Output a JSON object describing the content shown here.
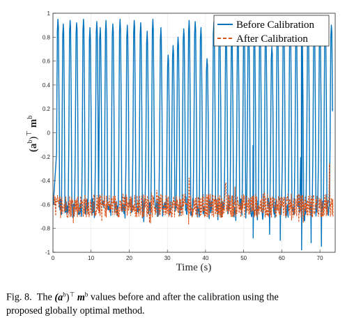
{
  "chart_data": {
    "type": "line",
    "xlabel": "Time (s)",
    "ylabel_parts": {
      "base": "(a",
      "sup1": "b",
      "close": ")",
      "sup2": "⊤",
      "m": " m",
      "sup3": "b"
    },
    "xlim": [
      0,
      74
    ],
    "ylim": [
      -1,
      1
    ],
    "x_ticks": [
      0,
      10,
      20,
      30,
      40,
      50,
      60,
      70
    ],
    "y_ticks": [
      -1,
      -0.8,
      -0.6,
      -0.4,
      -0.2,
      0,
      0.2,
      0.4,
      0.6,
      0.8,
      1
    ],
    "grid": true,
    "legend_position": "top-right",
    "series": [
      {
        "name": "Before Calibration",
        "color": "#0072BD",
        "style": "solid",
        "peak_times": [
          1.3,
          2.7,
          4.5,
          6.2,
          8.0,
          9.7,
          11.5,
          12.4,
          13.9,
          15.7,
          17.6,
          19.5,
          21.3,
          23.0,
          24.7,
          26.2,
          28.3,
          30.2,
          31.5,
          32.8,
          34.3,
          35.7,
          37.3,
          38.8,
          40.4,
          42.2,
          43.7,
          45.4,
          46.9,
          48.5,
          50.1,
          51.3,
          52.8,
          54.3,
          55.8,
          57.4,
          58.9,
          60.5,
          62.2,
          63.8,
          65.3,
          66.9,
          68.5,
          70.0,
          71.4,
          73.0
        ],
        "peak_values": [
          0.95,
          0.91,
          0.94,
          0.92,
          0.95,
          0.88,
          0.93,
          0.88,
          0.94,
          0.91,
          0.95,
          0.9,
          0.94,
          0.92,
          0.85,
          0.95,
          0.88,
          0.65,
          0.73,
          0.8,
          0.87,
          0.94,
          0.93,
          0.88,
          0.62,
          0.93,
          0.94,
          0.86,
          0.8,
          0.83,
          0.88,
          0.89,
          0.94,
          0.95,
          0.9,
          0.72,
          0.93,
          0.96,
          0.94,
          0.9,
          0.82,
          0.91,
          0.95,
          0.9,
          0.95,
          0.9
        ],
        "trough_min": -0.75,
        "extreme_troughs": [
          {
            "x": 52.5,
            "y": -0.88
          },
          {
            "x": 56.8,
            "y": -0.85
          },
          {
            "x": 59.6,
            "y": -0.9
          },
          {
            "x": 65.2,
            "y": -0.98
          },
          {
            "x": 67.7,
            "y": -0.92
          },
          {
            "x": 70.4,
            "y": -0.95
          }
        ]
      },
      {
        "name": "After Calibration",
        "color": "#D95319",
        "style": "dashed",
        "mean": -0.61,
        "spread": 0.1,
        "peak_events": [
          {
            "x": 35.7,
            "y": -0.38
          },
          {
            "x": 45.3,
            "y": -0.42
          },
          {
            "x": 72.5,
            "y": -0.26
          }
        ]
      }
    ]
  },
  "caption": {
    "fig": "Fig. 8.",
    "the": "The",
    "a_open": "(a",
    "a_sup": "b",
    "a_close": ")",
    "top": "⊤",
    "m": "m",
    "m_sup": "b",
    "rest": "values before and after the calibration using the",
    "line2": "proposed globally optimal method."
  }
}
